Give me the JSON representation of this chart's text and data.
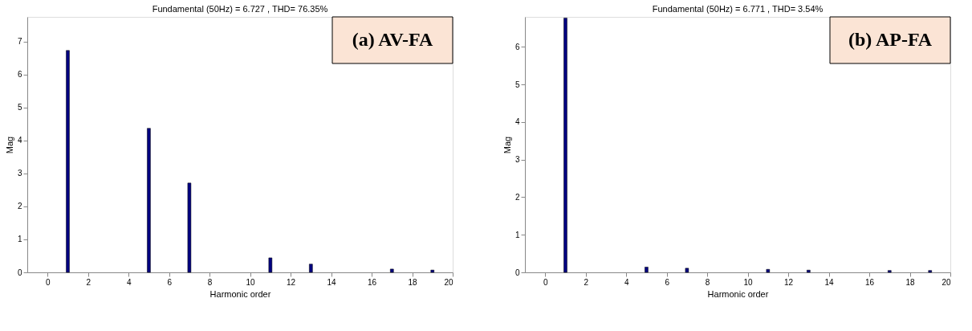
{
  "chart_data": [
    {
      "type": "bar",
      "title": "Fundamental (50Hz) = 6.727 , THD= 76.35%",
      "xlabel": "Harmonic order",
      "ylabel": "Mag",
      "annotations": [
        "(a) AV-FA"
      ],
      "x": [
        1,
        5,
        7,
        11,
        13,
        17,
        19
      ],
      "series": [
        {
          "color": "#000080",
          "values": [
            6.73,
            4.37,
            2.71,
            0.44,
            0.25,
            0.1,
            0.07
          ]
        }
      ],
      "xlim": [
        -1,
        20
      ],
      "xticks": [
        0,
        2,
        4,
        6,
        8,
        10,
        12,
        14,
        16,
        18,
        20
      ],
      "ylim": [
        0,
        7.75
      ],
      "yticks": [
        0,
        1,
        2,
        3,
        4,
        5,
        6,
        7
      ],
      "grid": false
    },
    {
      "type": "bar",
      "title": "Fundamental (50Hz) = 6.771 , THD= 3.54%",
      "xlabel": "Harmonic order",
      "ylabel": "Mag",
      "annotations": [
        "(b) AP-FA"
      ],
      "x": [
        1,
        5,
        7,
        11,
        13,
        17,
        19
      ],
      "series": [
        {
          "color": "#000080",
          "values": [
            6.77,
            0.14,
            0.11,
            0.08,
            0.06,
            0.05,
            0.05
          ]
        }
      ],
      "xlim": [
        -1,
        20
      ],
      "xticks": [
        0,
        2,
        4,
        6,
        8,
        10,
        12,
        14,
        16,
        18,
        20
      ],
      "ylim": [
        0,
        6.8
      ],
      "yticks": [
        0,
        1,
        2,
        3,
        4,
        5,
        6
      ],
      "grid": false
    }
  ]
}
